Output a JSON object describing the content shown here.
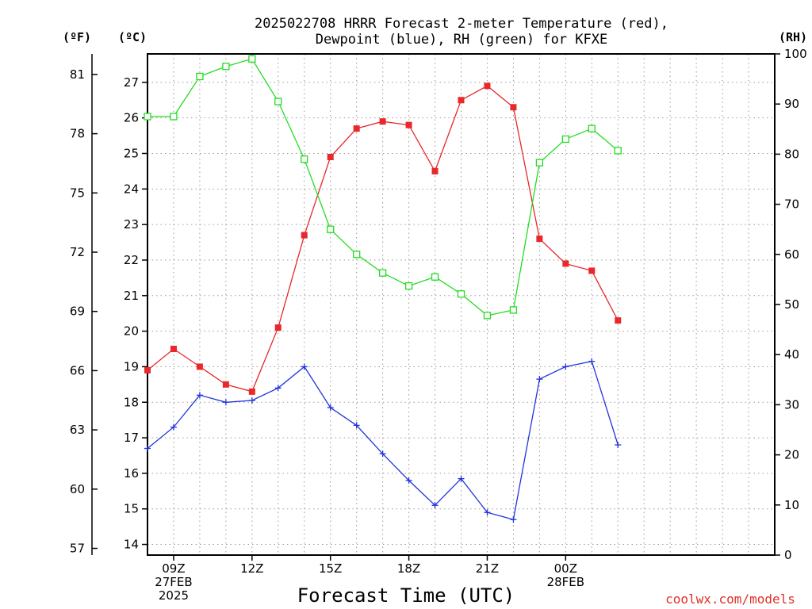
{
  "chart_data": {
    "type": "line",
    "title_line1": "2025022708 HRRR Forecast 2-meter Temperature (red),",
    "title_line2": "Dewpoint (blue), RH (green) for KFXE",
    "xlabel": "Forecast Time (UTC)",
    "credit": "coolwx.com/models",
    "unit_labels": {
      "fahrenheit": "(ºF)",
      "celsius": "(ºC)",
      "rh": "(RH)"
    },
    "x_hours_range": [
      8,
      32
    ],
    "x_ticks": [
      {
        "hour": 9,
        "lines": [
          "09Z",
          "27FEB",
          "2025"
        ]
      },
      {
        "hour": 12,
        "lines": [
          "12Z"
        ]
      },
      {
        "hour": 15,
        "lines": [
          "15Z"
        ]
      },
      {
        "hour": 18,
        "lines": [
          "18Z"
        ]
      },
      {
        "hour": 21,
        "lines": [
          "21Z"
        ]
      },
      {
        "hour": 24,
        "lines": [
          "00Z",
          "28FEB"
        ]
      }
    ],
    "celsius_axis": {
      "range": [
        13.7,
        27.8
      ],
      "ticks": [
        14,
        15,
        16,
        17,
        18,
        19,
        20,
        21,
        22,
        23,
        24,
        25,
        26,
        27
      ]
    },
    "fahrenheit_axis": {
      "ticks": [
        57,
        60,
        63,
        66,
        69,
        72,
        75,
        78,
        81
      ]
    },
    "rh_axis": {
      "range": [
        0,
        100
      ],
      "ticks": [
        0,
        10,
        20,
        30,
        40,
        50,
        60,
        70,
        80,
        90,
        100
      ]
    },
    "grid": true,
    "series": [
      {
        "name": "Temperature",
        "axis": "celsius",
        "color": "#e8282a",
        "marker": "filled-square",
        "x": [
          8,
          9,
          10,
          11,
          12,
          13,
          14,
          15,
          16,
          17,
          18,
          19,
          20,
          21,
          22,
          23,
          24,
          25,
          26
        ],
        "values": [
          18.9,
          19.5,
          19.0,
          18.5,
          18.3,
          20.1,
          22.7,
          24.9,
          25.7,
          25.9,
          25.8,
          24.5,
          26.5,
          26.9,
          26.3,
          22.6,
          21.9,
          21.7,
          20.3
        ]
      },
      {
        "name": "Dewpoint",
        "axis": "celsius",
        "color": "#2233dd",
        "marker": "plus",
        "x": [
          8,
          9,
          10,
          11,
          12,
          13,
          14,
          15,
          16,
          17,
          18,
          19,
          20,
          21,
          22,
          23,
          24,
          25,
          26
        ],
        "values": [
          16.7,
          17.3,
          18.2,
          18.0,
          18.05,
          18.4,
          19.0,
          17.85,
          17.35,
          16.55,
          15.8,
          15.1,
          15.85,
          14.9,
          14.7,
          18.65,
          19.0,
          19.15,
          16.8
        ]
      },
      {
        "name": "RH",
        "axis": "rh",
        "color": "#22dd22",
        "marker": "open-square",
        "x": [
          8,
          9,
          10,
          11,
          12,
          13,
          14,
          15,
          16,
          17,
          18,
          19,
          20,
          21,
          22,
          23,
          24,
          25,
          26
        ],
        "values": [
          87.5,
          87.5,
          95.5,
          97.5,
          99,
          90.5,
          79,
          65,
          60,
          56.3,
          53.7,
          55.5,
          52.1,
          47.8,
          48.9,
          78.3,
          83,
          85.1,
          80.7
        ]
      }
    ]
  }
}
